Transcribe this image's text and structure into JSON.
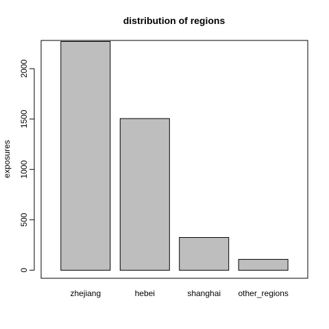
{
  "chart_data": {
    "type": "bar",
    "title": "distribution of regions",
    "xlabel": "",
    "ylabel": "exposures",
    "categories": [
      "zhejiang",
      "hebei",
      "shanghai",
      "other_regions"
    ],
    "values": [
      2270,
      1505,
      325,
      108
    ],
    "yticks": [
      0,
      500,
      1000,
      1500,
      2000
    ],
    "ylim": [
      -80,
      2280
    ],
    "grid": false,
    "legend": "none",
    "colors": {
      "bar_fill": "#bebebe",
      "bar_stroke": "#000000",
      "frame": "#000000",
      "text": "#000000"
    }
  }
}
